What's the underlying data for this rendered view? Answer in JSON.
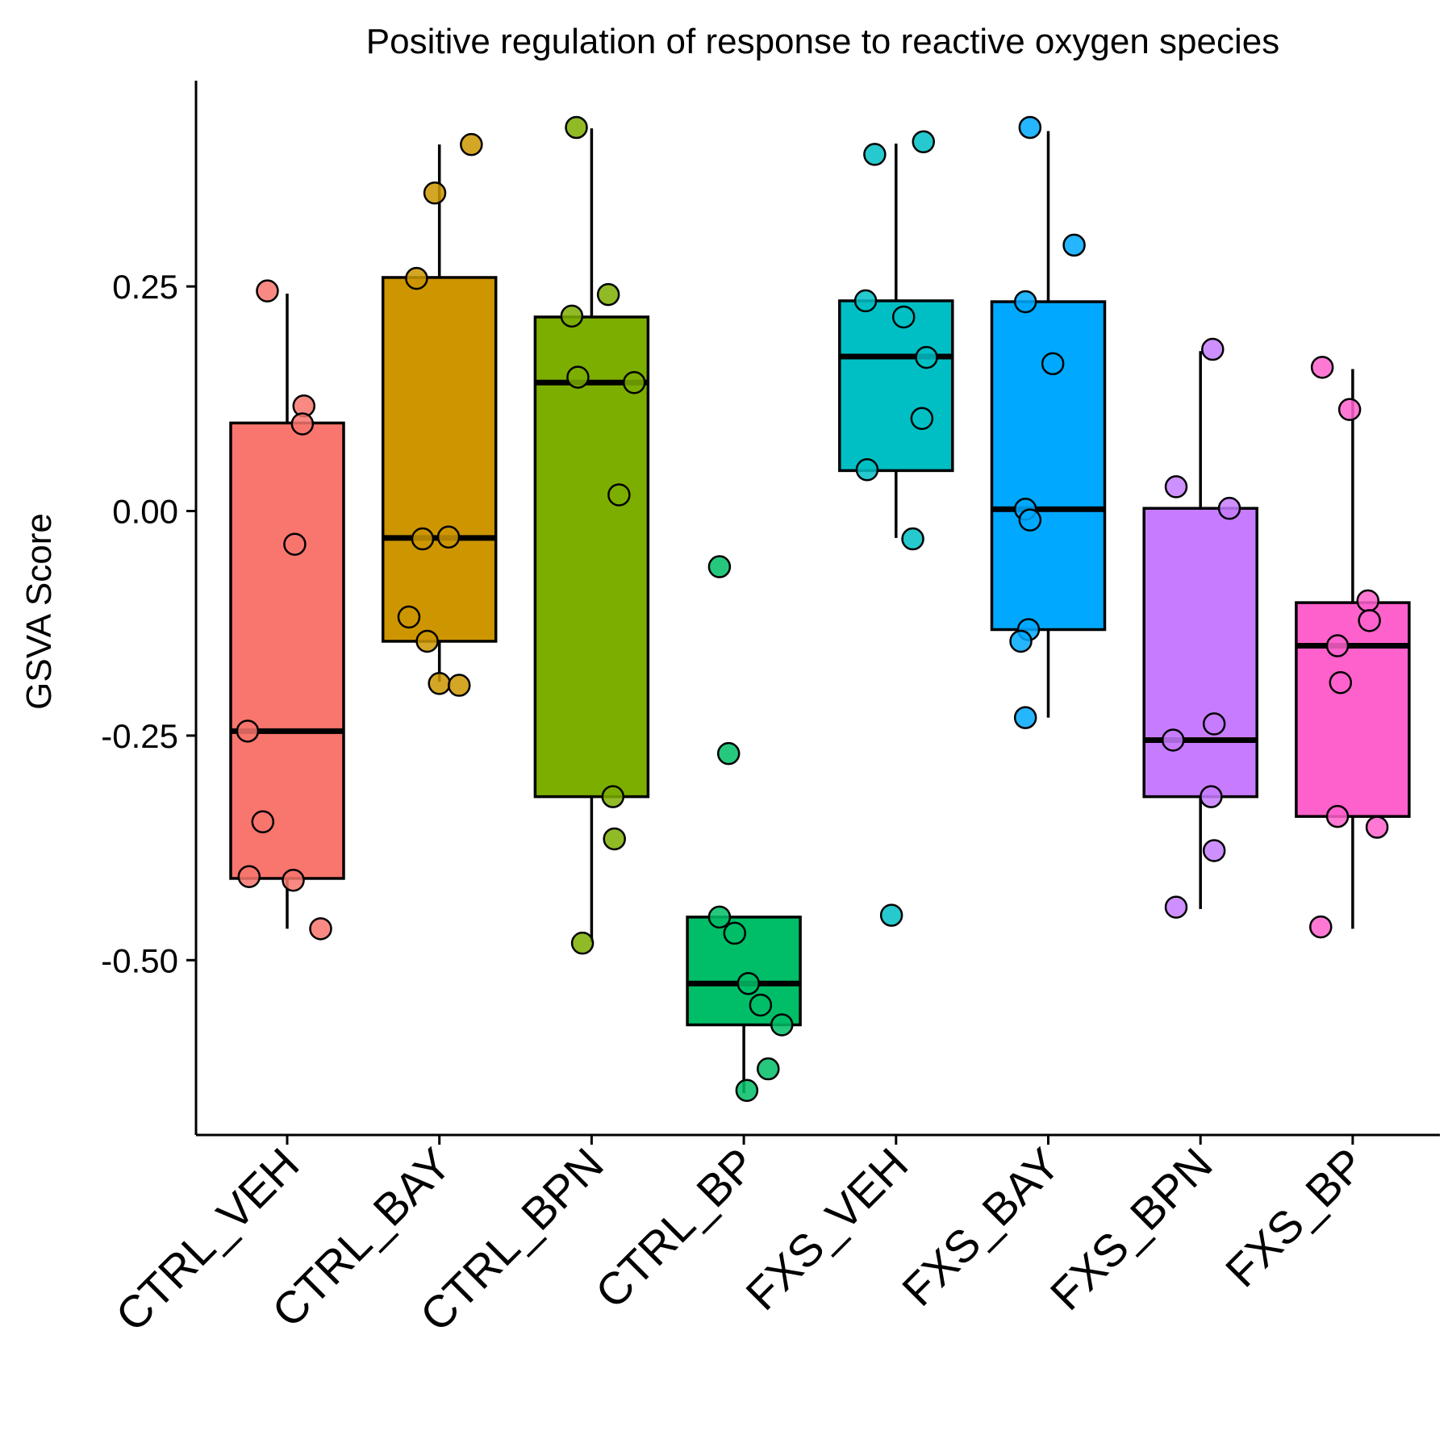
{
  "chart_data": {
    "type": "box",
    "title": "Positive regulation of response to reactive oxygen species",
    "xlabel": "",
    "ylabel": "GSVA Score",
    "ylim": [
      -0.69,
      0.49
    ],
    "yticks": [
      0.25,
      0.0,
      -0.25,
      -0.5
    ],
    "ytick_labels": [
      "0.25",
      "0.00",
      "-0.25",
      "-0.50"
    ],
    "grid": false,
    "legend": "none",
    "categories": [
      "CTRL_VEH",
      "CTRL_BAY",
      "CTRL_BPN",
      "CTRL_BP",
      "FXS_VEH",
      "FXS_BAY",
      "FXS_BPN",
      "FXS_BP"
    ],
    "colors": [
      "#F8766D",
      "#CD9600",
      "#7CAE00",
      "#00BE67",
      "#00BFC4",
      "#00A9FF",
      "#C77CFF",
      "#FF61CC"
    ],
    "boxes": [
      {
        "q1": -0.409,
        "median": -0.245,
        "q3": 0.098,
        "whisker_low": -0.465,
        "whisker_high": 0.242
      },
      {
        "q1": -0.145,
        "median": -0.03,
        "q3": 0.26,
        "whisker_low": -0.19,
        "whisker_high": 0.408
      },
      {
        "q1": -0.318,
        "median": 0.143,
        "q3": 0.216,
        "whisker_low": -0.48,
        "whisker_high": 0.426
      },
      {
        "q1": -0.572,
        "median": -0.526,
        "q3": -0.452,
        "whisker_low": -0.648,
        "whisker_high": -0.452
      },
      {
        "q1": 0.045,
        "median": 0.172,
        "q3": 0.234,
        "whisker_low": -0.03,
        "whisker_high": 0.409
      },
      {
        "q1": -0.132,
        "median": 0.002,
        "q3": 0.233,
        "whisker_low": -0.23,
        "whisker_high": 0.423
      },
      {
        "q1": -0.318,
        "median": -0.255,
        "q3": 0.003,
        "whisker_low": -0.443,
        "whisker_high": 0.178
      },
      {
        "q1": -0.34,
        "median": -0.15,
        "q3": -0.102,
        "whisker_low": -0.465,
        "whisker_high": 0.158
      }
    ],
    "points": [
      [
        {
          "dx": -0.13,
          "y": 0.245
        },
        {
          "dx": 0.11,
          "y": 0.117
        },
        {
          "dx": 0.1,
          "y": 0.097
        },
        {
          "dx": 0.05,
          "y": -0.037
        },
        {
          "dx": -0.26,
          "y": -0.245
        },
        {
          "dx": -0.16,
          "y": -0.346
        },
        {
          "dx": -0.25,
          "y": -0.407
        },
        {
          "dx": 0.04,
          "y": -0.411
        },
        {
          "dx": 0.22,
          "y": -0.465
        }
      ],
      [
        {
          "dx": 0.21,
          "y": 0.408
        },
        {
          "dx": -0.03,
          "y": 0.354
        },
        {
          "dx": -0.15,
          "y": 0.259
        },
        {
          "dx": -0.11,
          "y": -0.031
        },
        {
          "dx": 0.06,
          "y": -0.029
        },
        {
          "dx": -0.2,
          "y": -0.118
        },
        {
          "dx": -0.08,
          "y": -0.145
        },
        {
          "dx": 0.0,
          "y": -0.192
        },
        {
          "dx": 0.13,
          "y": -0.194
        }
      ],
      [
        {
          "dx": -0.1,
          "y": 0.427
        },
        {
          "dx": 0.11,
          "y": 0.241
        },
        {
          "dx": -0.13,
          "y": 0.217
        },
        {
          "dx": -0.09,
          "y": 0.149
        },
        {
          "dx": 0.28,
          "y": 0.143
        },
        {
          "dx": 0.18,
          "y": 0.018
        },
        {
          "dx": 0.14,
          "y": -0.318
        },
        {
          "dx": 0.15,
          "y": -0.365
        },
        {
          "dx": -0.06,
          "y": -0.481
        }
      ],
      [
        {
          "dx": -0.16,
          "y": -0.062
        },
        {
          "dx": -0.1,
          "y": -0.27
        },
        {
          "dx": -0.16,
          "y": -0.452
        },
        {
          "dx": -0.06,
          "y": -0.47
        },
        {
          "dx": 0.03,
          "y": -0.526
        },
        {
          "dx": 0.11,
          "y": -0.55
        },
        {
          "dx": 0.25,
          "y": -0.572
        },
        {
          "dx": 0.16,
          "y": -0.621
        },
        {
          "dx": 0.02,
          "y": -0.645
        }
      ],
      [
        {
          "dx": 0.18,
          "y": 0.411
        },
        {
          "dx": -0.14,
          "y": 0.397
        },
        {
          "dx": -0.2,
          "y": 0.234
        },
        {
          "dx": 0.05,
          "y": 0.216
        },
        {
          "dx": 0.2,
          "y": 0.171
        },
        {
          "dx": 0.17,
          "y": 0.103
        },
        {
          "dx": -0.19,
          "y": 0.046
        },
        {
          "dx": 0.11,
          "y": -0.031
        },
        {
          "dx": -0.03,
          "y": -0.45
        }
      ],
      [
        {
          "dx": -0.12,
          "y": 0.427
        },
        {
          "dx": 0.17,
          "y": 0.296
        },
        {
          "dx": -0.15,
          "y": 0.233
        },
        {
          "dx": 0.03,
          "y": 0.164
        },
        {
          "dx": -0.15,
          "y": 0.002
        },
        {
          "dx": -0.12,
          "y": -0.01
        },
        {
          "dx": -0.13,
          "y": -0.132
        },
        {
          "dx": -0.18,
          "y": -0.145
        },
        {
          "dx": -0.15,
          "y": -0.23
        }
      ],
      [
        {
          "dx": 0.08,
          "y": 0.18
        },
        {
          "dx": -0.16,
          "y": 0.027
        },
        {
          "dx": 0.19,
          "y": 0.003
        },
        {
          "dx": -0.18,
          "y": -0.255
        },
        {
          "dx": 0.09,
          "y": -0.237
        },
        {
          "dx": 0.07,
          "y": -0.318
        },
        {
          "dx": 0.09,
          "y": -0.378
        },
        {
          "dx": -0.16,
          "y": -0.441
        }
      ],
      [
        {
          "dx": -0.2,
          "y": 0.16
        },
        {
          "dx": -0.02,
          "y": 0.113
        },
        {
          "dx": 0.1,
          "y": -0.1
        },
        {
          "dx": 0.11,
          "y": -0.122
        },
        {
          "dx": -0.1,
          "y": -0.15
        },
        {
          "dx": -0.08,
          "y": -0.191
        },
        {
          "dx": -0.1,
          "y": -0.34
        },
        {
          "dx": 0.16,
          "y": -0.352
        },
        {
          "dx": -0.21,
          "y": -0.463
        }
      ]
    ]
  }
}
